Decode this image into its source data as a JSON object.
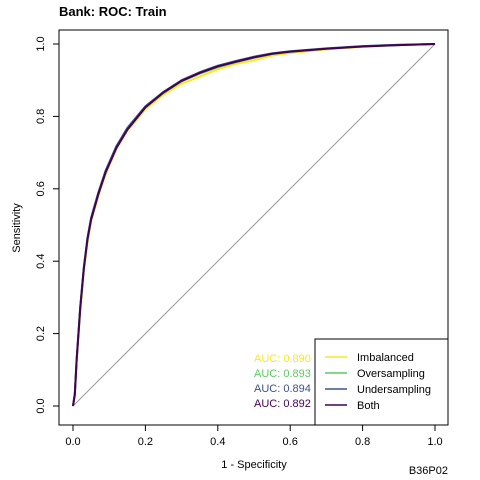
{
  "chart_data": {
    "type": "line",
    "title": "Bank: ROC: Train",
    "xlabel": "1 - Specificity",
    "ylabel": "Sensitivity",
    "xlim": [
      0,
      1
    ],
    "ylim": [
      0,
      1
    ],
    "x_ticks": [
      "0.0",
      "0.2",
      "0.4",
      "0.6",
      "0.8",
      "1.0"
    ],
    "y_ticks": [
      "0.0",
      "0.2",
      "0.4",
      "0.6",
      "0.8",
      "1.0"
    ],
    "grid": false,
    "legend_position": "bottom-right",
    "reference_line": "diagonal",
    "series": [
      {
        "name": "Imbalanced",
        "color": "#FDE725",
        "auc_label": "AUC: 0.890",
        "x": [
          0,
          0.005,
          0.01,
          0.02,
          0.03,
          0.04,
          0.05,
          0.07,
          0.09,
          0.12,
          0.15,
          0.2,
          0.25,
          0.3,
          0.35,
          0.4,
          0.45,
          0.5,
          0.55,
          0.6,
          0.7,
          0.8,
          0.9,
          1.0
        ],
        "y": [
          0,
          0.03,
          0.12,
          0.26,
          0.37,
          0.45,
          0.51,
          0.58,
          0.64,
          0.71,
          0.76,
          0.82,
          0.86,
          0.89,
          0.91,
          0.93,
          0.945,
          0.955,
          0.968,
          0.975,
          0.985,
          0.992,
          0.997,
          1.0
        ]
      },
      {
        "name": "Oversampling",
        "color": "#5EC962",
        "auc_label": "AUC: 0.893",
        "x": [
          0,
          0.005,
          0.01,
          0.02,
          0.03,
          0.04,
          0.05,
          0.07,
          0.09,
          0.12,
          0.15,
          0.2,
          0.25,
          0.3,
          0.35,
          0.4,
          0.45,
          0.5,
          0.55,
          0.6,
          0.7,
          0.8,
          0.9,
          1.0
        ],
        "y": [
          0,
          0.035,
          0.125,
          0.27,
          0.38,
          0.46,
          0.515,
          0.585,
          0.645,
          0.715,
          0.765,
          0.825,
          0.865,
          0.897,
          0.918,
          0.936,
          0.95,
          0.962,
          0.972,
          0.978,
          0.987,
          0.993,
          0.997,
          1.0
        ]
      },
      {
        "name": "Undersampling",
        "color": "#3B528B",
        "auc_label": "AUC: 0.894",
        "x": [
          0,
          0.005,
          0.01,
          0.02,
          0.03,
          0.04,
          0.05,
          0.07,
          0.09,
          0.12,
          0.15,
          0.2,
          0.25,
          0.3,
          0.35,
          0.4,
          0.45,
          0.5,
          0.55,
          0.6,
          0.7,
          0.8,
          0.9,
          1.0
        ],
        "y": [
          0,
          0.035,
          0.13,
          0.275,
          0.385,
          0.465,
          0.52,
          0.59,
          0.65,
          0.718,
          0.768,
          0.828,
          0.868,
          0.9,
          0.922,
          0.94,
          0.953,
          0.965,
          0.974,
          0.98,
          0.988,
          0.994,
          0.998,
          1.0
        ]
      },
      {
        "name": "Both",
        "color": "#440154",
        "auc_label": "AUC: 0.892",
        "x": [
          0,
          0.005,
          0.01,
          0.02,
          0.03,
          0.04,
          0.05,
          0.07,
          0.09,
          0.12,
          0.15,
          0.2,
          0.25,
          0.3,
          0.35,
          0.4,
          0.45,
          0.5,
          0.55,
          0.6,
          0.7,
          0.8,
          0.9,
          1.0
        ],
        "y": [
          0,
          0.03,
          0.125,
          0.27,
          0.38,
          0.46,
          0.515,
          0.585,
          0.645,
          0.713,
          0.763,
          0.825,
          0.866,
          0.898,
          0.92,
          0.938,
          0.951,
          0.963,
          0.973,
          0.979,
          0.987,
          0.993,
          0.997,
          1.0
        ]
      }
    ]
  },
  "corner_label": "B36P02"
}
